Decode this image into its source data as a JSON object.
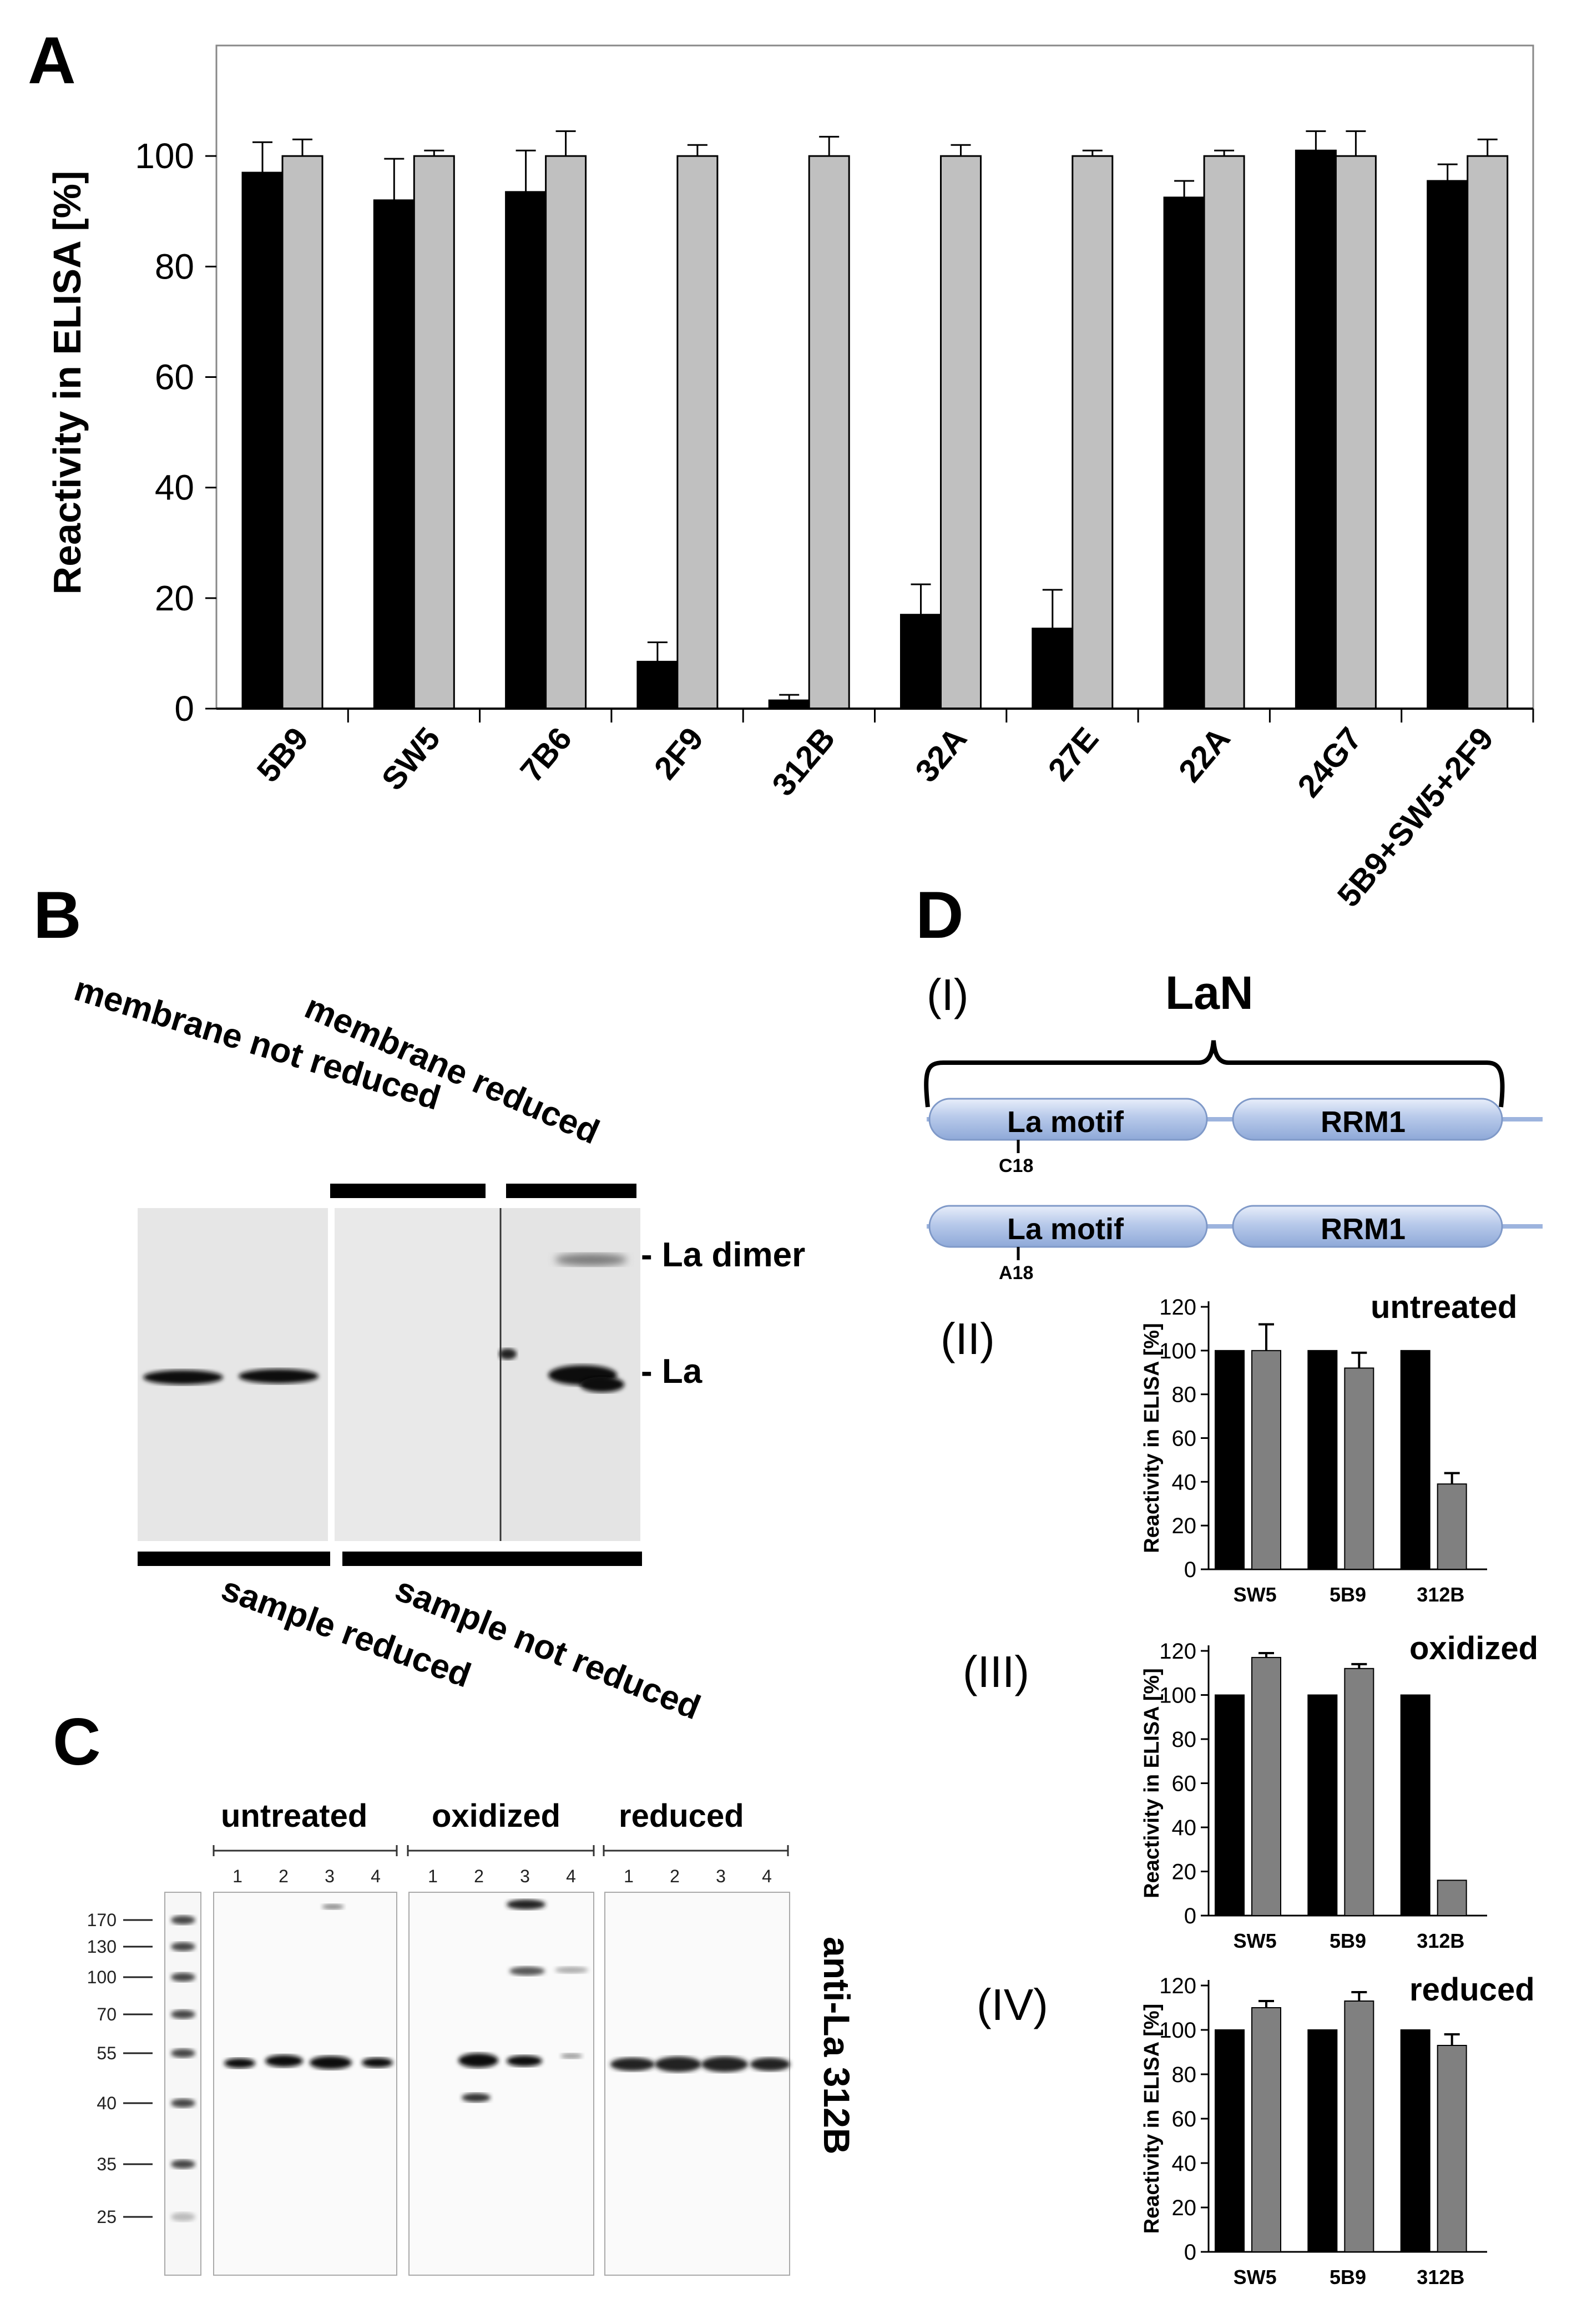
{
  "panels": {
    "A": {
      "letter": "A"
    },
    "B": {
      "letter": "B",
      "labels": {
        "membrane_not_reduced": "membrane not reduced",
        "membrane_reduced": "membrane reduced",
        "sample_reduced": "sample reduced",
        "sample_not_reduced": "sample not reduced",
        "la_dimer": "- La dimer",
        "la": "- La"
      }
    },
    "C": {
      "letter": "C",
      "groups": [
        "untreated",
        "oxidized",
        "reduced"
      ],
      "lane_numbers": [
        "1",
        "2",
        "3",
        "4"
      ],
      "marker_kda": [
        "170",
        "130",
        "100",
        "70",
        "55",
        "40",
        "35",
        "25"
      ],
      "antibody_label": "anti-La 312B"
    },
    "D": {
      "letter": "D",
      "diagram": {
        "roman": "(I)",
        "title": "LaN",
        "domain_1": "La motif",
        "domain_2": "RRM1",
        "mutation_wt": "C18",
        "mutation_mut": "A18"
      }
    }
  },
  "chart_data": [
    {
      "id": "A",
      "type": "bar",
      "title": "",
      "xlabel": "",
      "ylabel": "Reactivity in ELISA [%]",
      "ylim": [
        0,
        120
      ],
      "yticks": [
        0,
        20,
        40,
        60,
        80,
        100
      ],
      "categories": [
        "5B9",
        "SW5",
        "7B6",
        "2F9",
        "312B",
        "32A",
        "27E",
        "22A",
        "24G7",
        "5B9+SW5+2F9"
      ],
      "series": [
        {
          "name": "black",
          "color": "#000000",
          "values": [
            97,
            92,
            93.5,
            8.5,
            1.5,
            17,
            14.5,
            92.5,
            101,
            95.5
          ],
          "errors": [
            5.5,
            7.5,
            7.5,
            3.5,
            1,
            5.5,
            7,
            3,
            3.5,
            3
          ]
        },
        {
          "name": "grey",
          "color": "#c0c0c0",
          "values": [
            100,
            100,
            100,
            100,
            100,
            100,
            100,
            100,
            100,
            100
          ],
          "errors": [
            3,
            1,
            4.5,
            2,
            3.5,
            2,
            1,
            1,
            4.5,
            3
          ]
        }
      ]
    },
    {
      "id": "D-II",
      "type": "bar",
      "roman": "(II)",
      "title": "untreated",
      "ylabel": "Reactivity in ELISA [%]",
      "ylim": [
        0,
        120
      ],
      "yticks": [
        0,
        20,
        40,
        60,
        80,
        100,
        120
      ],
      "categories": [
        "SW5",
        "5B9",
        "312B"
      ],
      "series": [
        {
          "name": "black",
          "color": "#000000",
          "values": [
            100,
            100,
            100
          ],
          "errors": [
            0,
            0,
            0
          ]
        },
        {
          "name": "grey",
          "color": "#808080",
          "values": [
            100,
            92,
            39
          ],
          "errors": [
            12,
            7,
            5
          ]
        }
      ]
    },
    {
      "id": "D-III",
      "type": "bar",
      "roman": "(III)",
      "title": "oxidized",
      "ylabel": "Reactivity in ELISA [%]",
      "ylim": [
        0,
        120
      ],
      "yticks": [
        0,
        20,
        40,
        60,
        80,
        100,
        120
      ],
      "categories": [
        "SW5",
        "5B9",
        "312B"
      ],
      "series": [
        {
          "name": "black",
          "color": "#000000",
          "values": [
            100,
            100,
            100
          ],
          "errors": [
            0,
            0,
            0
          ]
        },
        {
          "name": "grey",
          "color": "#808080",
          "values": [
            117,
            112,
            16
          ],
          "errors": [
            2,
            2,
            0
          ]
        }
      ]
    },
    {
      "id": "D-IV",
      "type": "bar",
      "roman": "(IV)",
      "title": "reduced",
      "ylabel": "Reactivity in ELISA [%]",
      "ylim": [
        0,
        120
      ],
      "yticks": [
        0,
        20,
        40,
        60,
        80,
        100,
        120
      ],
      "categories": [
        "SW5",
        "5B9",
        "312B"
      ],
      "series": [
        {
          "name": "black",
          "color": "#000000",
          "values": [
            100,
            100,
            100
          ],
          "errors": [
            0,
            0,
            0
          ]
        },
        {
          "name": "grey",
          "color": "#808080",
          "values": [
            110,
            113,
            93
          ],
          "errors": [
            3,
            4,
            5
          ]
        }
      ]
    }
  ]
}
